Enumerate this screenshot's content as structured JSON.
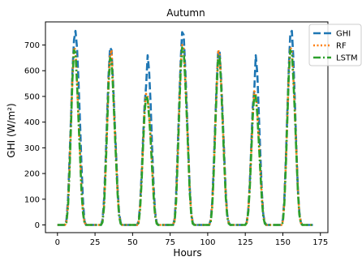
{
  "chart_data": {
    "type": "line",
    "title": "Autumn",
    "xlabel": "Hours",
    "ylabel": "GHI (W/m²)",
    "xlim": [
      -8,
      180
    ],
    "ylim": [
      -30,
      790
    ],
    "xticks": [
      0,
      25,
      50,
      75,
      100,
      125,
      150,
      175
    ],
    "yticks": [
      0,
      100,
      200,
      300,
      400,
      500,
      600,
      700
    ],
    "legend_position": "top-right",
    "grid": false,
    "series": [
      {
        "name": "GHI",
        "color": "#1f77b4",
        "dash": "dashed",
        "x": [
          0,
          5,
          6,
          7,
          8,
          9,
          10,
          11,
          12,
          13,
          14,
          15,
          16,
          17,
          18,
          19,
          20,
          29,
          30,
          31,
          32,
          33,
          34,
          35,
          36,
          37,
          38,
          39,
          40,
          41,
          42,
          43,
          44,
          53,
          54,
          55,
          56,
          57,
          58,
          59,
          60,
          61,
          62,
          63,
          64,
          65,
          66,
          67,
          68,
          77,
          78,
          79,
          80,
          81,
          82,
          83,
          84,
          85,
          86,
          87,
          88,
          89,
          90,
          91,
          92,
          101,
          102,
          103,
          104,
          105,
          106,
          107,
          108,
          109,
          110,
          111,
          112,
          113,
          114,
          115,
          116,
          125,
          126,
          127,
          128,
          129,
          130,
          131,
          132,
          133,
          134,
          135,
          136,
          137,
          138,
          139,
          140,
          149,
          150,
          151,
          152,
          153,
          154,
          155,
          156,
          157,
          158,
          159,
          160,
          161,
          162,
          163,
          164,
          170
        ],
        "y": [
          0,
          0,
          20,
          100,
          250,
          420,
          600,
          720,
          755,
          690,
          560,
          400,
          230,
          90,
          15,
          0,
          0,
          0,
          20,
          100,
          240,
          420,
          580,
          690,
          680,
          560,
          420,
          280,
          140,
          50,
          10,
          0,
          0,
          0,
          15,
          80,
          200,
          340,
          470,
          540,
          660,
          600,
          470,
          300,
          150,
          50,
          10,
          0,
          0,
          0,
          25,
          120,
          290,
          470,
          640,
          750,
          740,
          620,
          470,
          300,
          150,
          50,
          10,
          0,
          0,
          0,
          20,
          90,
          230,
          400,
          560,
          680,
          670,
          560,
          420,
          270,
          130,
          40,
          10,
          0,
          0,
          0,
          10,
          60,
          160,
          310,
          460,
          525,
          660,
          590,
          430,
          280,
          130,
          40,
          10,
          0,
          0,
          0,
          20,
          100,
          260,
          440,
          620,
          745,
          755,
          650,
          480,
          300,
          140,
          50,
          10,
          0,
          0,
          0
        ]
      },
      {
        "name": "RF",
        "color": "#ff7f0e",
        "dash": "dotted",
        "x": [
          0,
          5,
          6,
          7,
          8,
          9,
          10,
          11,
          12,
          13,
          14,
          15,
          16,
          17,
          18,
          19,
          20,
          29,
          30,
          31,
          32,
          33,
          34,
          35,
          36,
          37,
          38,
          39,
          40,
          41,
          42,
          43,
          44,
          53,
          54,
          55,
          56,
          57,
          58,
          59,
          60,
          61,
          62,
          63,
          64,
          65,
          66,
          67,
          68,
          77,
          78,
          79,
          80,
          81,
          82,
          83,
          84,
          85,
          86,
          87,
          88,
          89,
          90,
          91,
          92,
          101,
          102,
          103,
          104,
          105,
          106,
          107,
          108,
          109,
          110,
          111,
          112,
          113,
          114,
          115,
          116,
          125,
          126,
          127,
          128,
          129,
          130,
          131,
          132,
          133,
          134,
          135,
          136,
          137,
          138,
          139,
          140,
          149,
          150,
          151,
          152,
          153,
          154,
          155,
          156,
          157,
          158,
          159,
          160,
          161,
          162,
          163,
          164,
          170
        ],
        "y": [
          0,
          0,
          15,
          80,
          220,
          400,
          580,
          690,
          680,
          560,
          420,
          280,
          140,
          50,
          10,
          0,
          0,
          0,
          15,
          80,
          210,
          380,
          560,
          660,
          680,
          540,
          400,
          260,
          130,
          40,
          8,
          0,
          0,
          0,
          10,
          70,
          180,
          320,
          450,
          510,
          500,
          430,
          340,
          230,
          120,
          40,
          8,
          0,
          0,
          0,
          20,
          100,
          260,
          440,
          620,
          700,
          690,
          580,
          440,
          290,
          140,
          45,
          8,
          0,
          0,
          0,
          15,
          80,
          210,
          380,
          540,
          680,
          660,
          540,
          400,
          250,
          120,
          35,
          8,
          0,
          0,
          0,
          10,
          55,
          150,
          290,
          430,
          520,
          510,
          440,
          330,
          220,
          110,
          35,
          8,
          0,
          0,
          0,
          15,
          90,
          240,
          420,
          600,
          690,
          680,
          580,
          440,
          290,
          140,
          45,
          8,
          0,
          0,
          0
        ]
      },
      {
        "name": "LSTM",
        "color": "#2ca02c",
        "dash": "dashdot",
        "x": [
          0,
          5,
          6,
          7,
          8,
          9,
          10,
          11,
          12,
          13,
          14,
          15,
          16,
          17,
          18,
          19,
          20,
          29,
          30,
          31,
          32,
          33,
          34,
          35,
          36,
          37,
          38,
          39,
          40,
          41,
          42,
          43,
          44,
          53,
          54,
          55,
          56,
          57,
          58,
          59,
          60,
          61,
          62,
          63,
          64,
          65,
          66,
          67,
          68,
          77,
          78,
          79,
          80,
          81,
          82,
          83,
          84,
          85,
          86,
          87,
          88,
          89,
          90,
          91,
          92,
          101,
          102,
          103,
          104,
          105,
          106,
          107,
          108,
          109,
          110,
          111,
          112,
          113,
          114,
          115,
          116,
          125,
          126,
          127,
          128,
          129,
          130,
          131,
          132,
          133,
          134,
          135,
          136,
          137,
          138,
          139,
          140,
          149,
          150,
          151,
          152,
          153,
          154,
          155,
          156,
          157,
          158,
          159,
          160,
          161,
          162,
          163,
          164,
          170
        ],
        "y": [
          0,
          0,
          10,
          70,
          200,
          390,
          570,
          680,
          670,
          550,
          410,
          270,
          130,
          45,
          8,
          0,
          0,
          0,
          10,
          70,
          200,
          370,
          540,
          650,
          640,
          530,
          390,
          250,
          120,
          35,
          5,
          0,
          0,
          0,
          8,
          60,
          170,
          310,
          440,
          500,
          490,
          420,
          330,
          220,
          110,
          35,
          5,
          0,
          0,
          0,
          15,
          90,
          250,
          430,
          600,
          690,
          680,
          570,
          430,
          280,
          130,
          40,
          5,
          0,
          0,
          0,
          10,
          70,
          200,
          370,
          530,
          660,
          650,
          530,
          390,
          240,
          110,
          30,
          5,
          0,
          0,
          0,
          8,
          50,
          140,
          280,
          420,
          510,
          500,
          430,
          320,
          210,
          100,
          30,
          5,
          0,
          0,
          0,
          10,
          80,
          230,
          410,
          590,
          680,
          670,
          570,
          430,
          280,
          130,
          40,
          5,
          0,
          0,
          0
        ]
      }
    ]
  }
}
